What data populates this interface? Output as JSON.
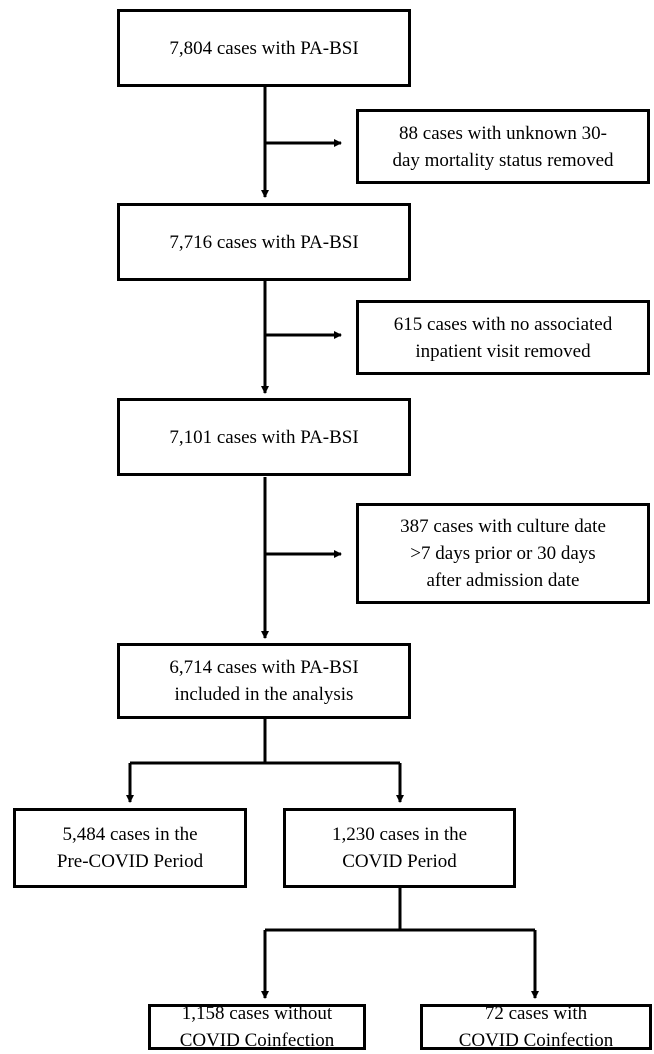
{
  "boxes": {
    "b1": {
      "lines": [
        "7,804 cases with PA-BSI"
      ]
    },
    "e1": {
      "lines": [
        "88 cases with unknown 30-",
        "day mortality status removed"
      ]
    },
    "b2": {
      "lines": [
        "7,716 cases with PA-BSI"
      ]
    },
    "e2": {
      "lines": [
        "615 cases with no associated",
        "inpatient visit removed"
      ]
    },
    "b3": {
      "lines": [
        "7,101 cases with PA-BSI"
      ]
    },
    "e3": {
      "lines": [
        "387 cases with culture date",
        ">7 days prior or 30 days",
        "after admission date"
      ]
    },
    "b4": {
      "lines": [
        "6,714 cases with PA-BSI",
        "included in the analysis"
      ]
    },
    "pre": {
      "lines": [
        "5,484 cases in the",
        "Pre-COVID Period"
      ]
    },
    "covid": {
      "lines": [
        "1,230 cases in the",
        "COVID Period"
      ]
    },
    "without": {
      "lines": [
        "1,158 cases without",
        "COVID Coinfection"
      ]
    },
    "with": {
      "lines": [
        "72 cases with",
        "COVID Coinfection"
      ]
    }
  }
}
